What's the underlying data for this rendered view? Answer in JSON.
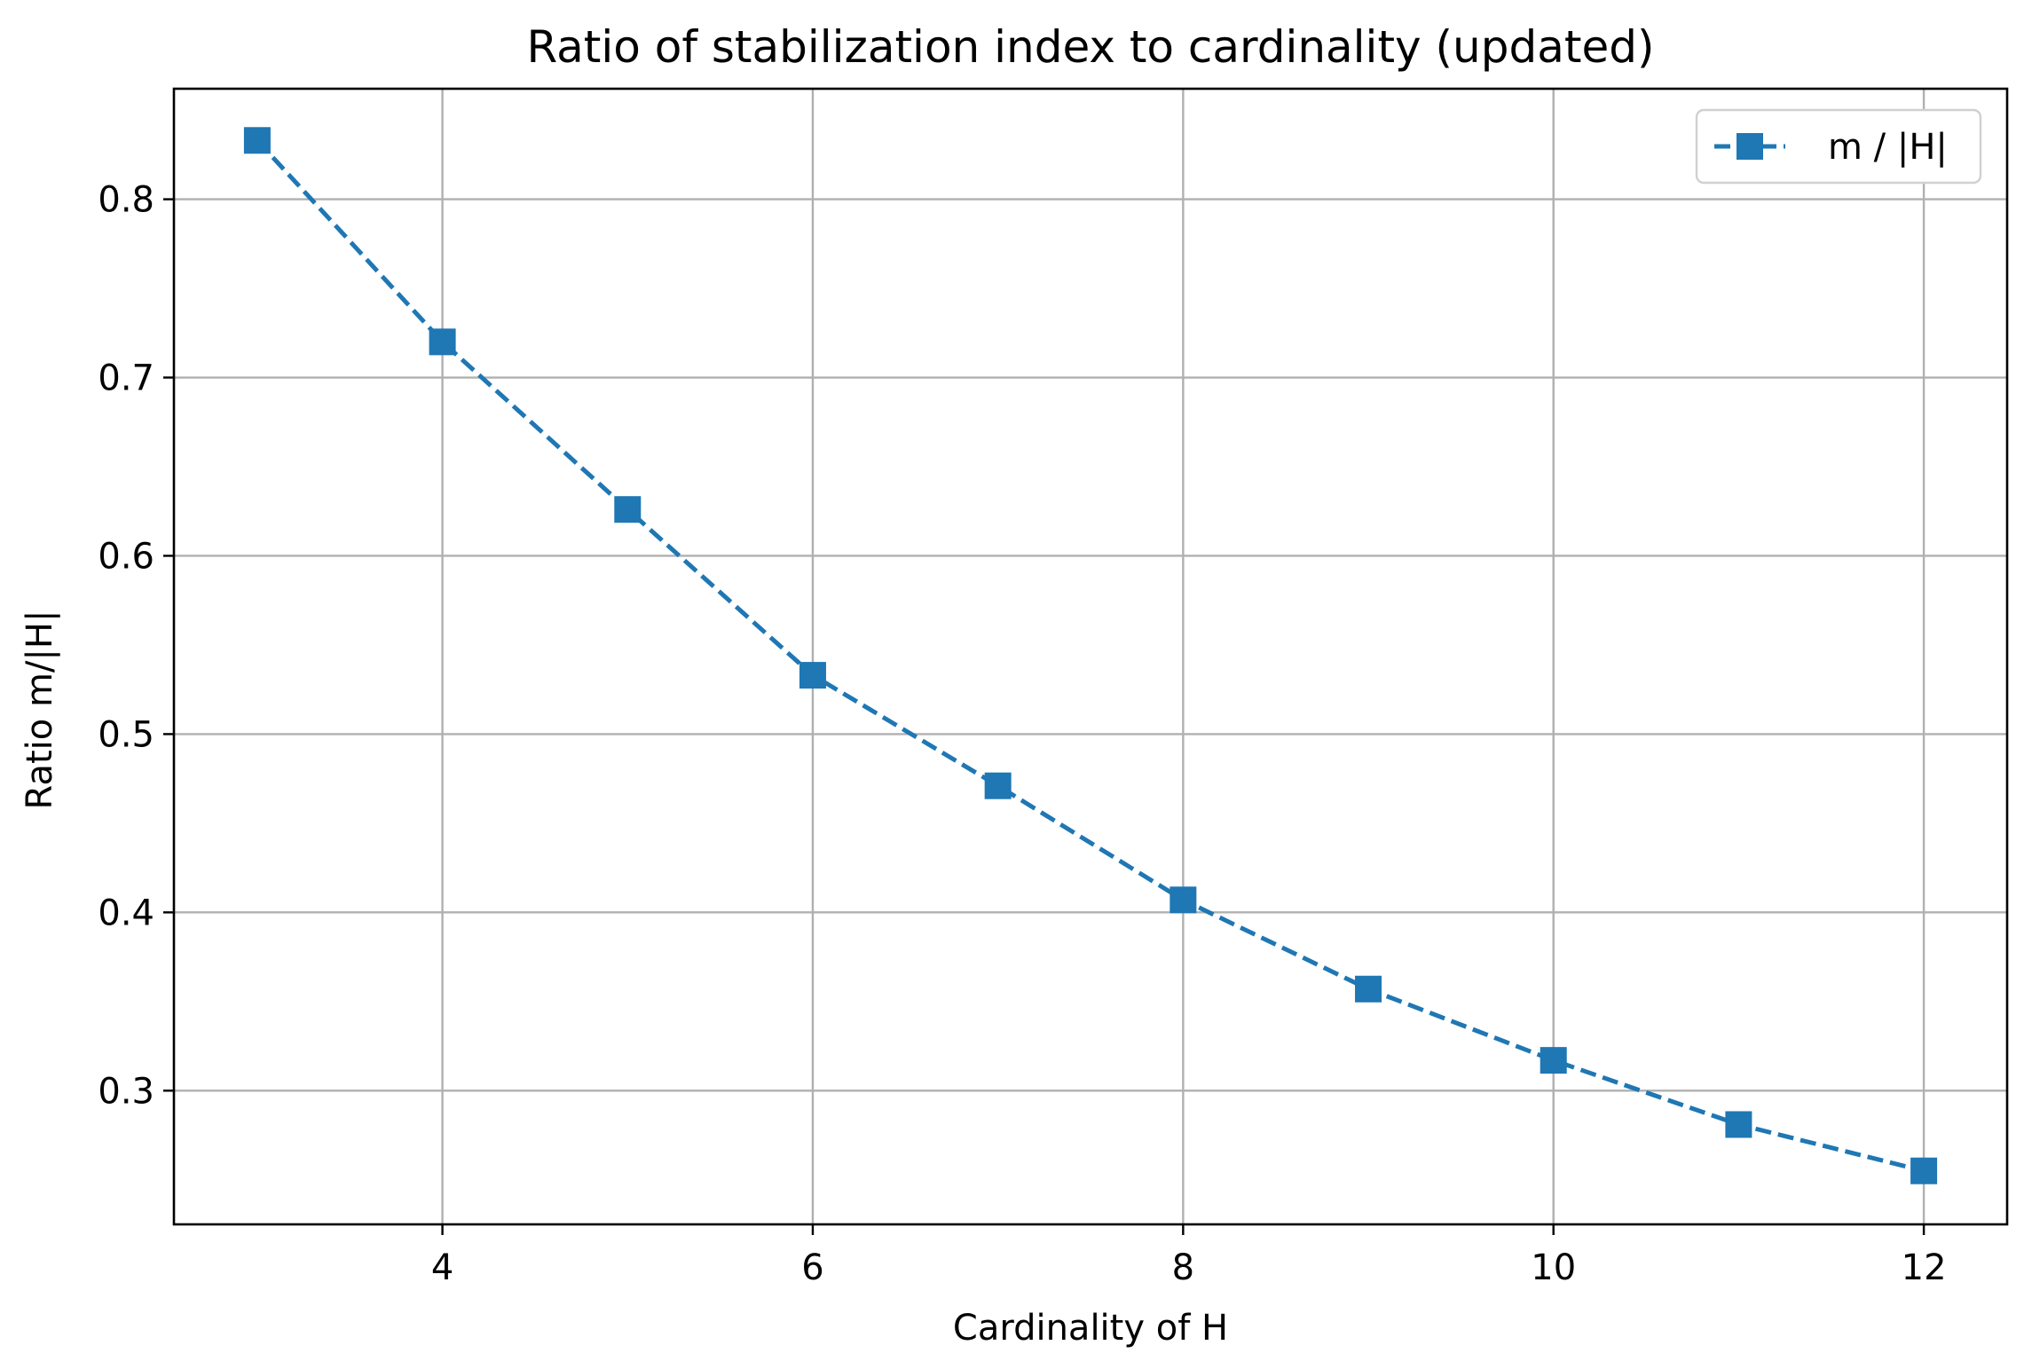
{
  "chart_data": {
    "type": "line",
    "title": "Ratio of stabilization index to cardinality (updated)",
    "xlabel": "Cardinality of H",
    "ylabel": "Ratio m/|H|",
    "xlim": [
      2.55,
      12.45
    ],
    "ylim": [
      0.225,
      0.862
    ],
    "xticks": [
      4,
      6,
      8,
      10,
      12
    ],
    "yticks": [
      0.3,
      0.4,
      0.5,
      0.6,
      0.7,
      0.8
    ],
    "xtick_labels": [
      "4",
      "6",
      "8",
      "10",
      "12"
    ],
    "ytick_labels": [
      "0.3",
      "0.4",
      "0.5",
      "0.6",
      "0.7",
      "0.8"
    ],
    "grid": true,
    "legend": {
      "position": "top-right",
      "entries": [
        "m / |H|"
      ]
    },
    "series": [
      {
        "name": "m / |H|",
        "color": "#1f77b4",
        "line_style": "dashed",
        "marker": "square",
        "x": [
          3,
          4,
          5,
          6,
          7,
          8,
          9,
          10,
          11,
          12
        ],
        "y": [
          0.833,
          0.72,
          0.626,
          0.533,
          0.471,
          0.407,
          0.357,
          0.317,
          0.281,
          0.255
        ]
      }
    ]
  }
}
